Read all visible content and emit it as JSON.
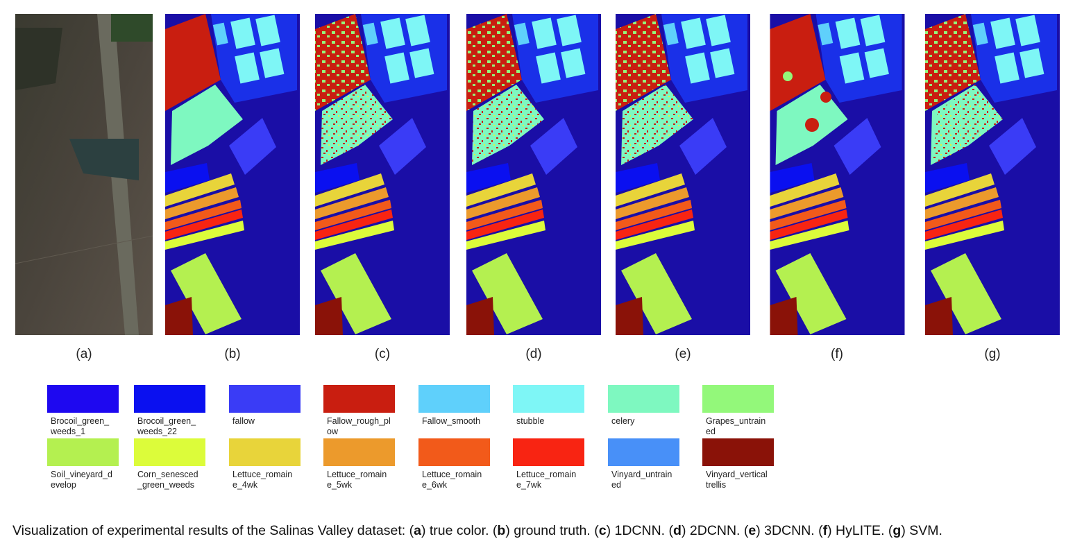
{
  "panels": [
    {
      "label": "(a)"
    },
    {
      "label": "(b)"
    },
    {
      "label": "(c)"
    },
    {
      "label": "(d)"
    },
    {
      "label": "(e)"
    },
    {
      "label": "(f)"
    },
    {
      "label": "(g)"
    }
  ],
  "legend": [
    {
      "label": "Brocoil_green_weeds_1",
      "color": "#1e08f0"
    },
    {
      "label": "Brocoil_green_weeds_22",
      "color": "#0a10f0"
    },
    {
      "label": "fallow",
      "color": "#3a3cf6"
    },
    {
      "label": "Fallow_rough_plow",
      "color": "#c91e10"
    },
    {
      "label": "Fallow_smooth",
      "color": "#5fd0fb"
    },
    {
      "label": "stubble",
      "color": "#7ef6f6"
    },
    {
      "label": "celery",
      "color": "#7ef8c0"
    },
    {
      "label": "Grapes_untrained",
      "color": "#93f87a"
    },
    {
      "label": "Soil_vineyard_develop",
      "color": "#b4f050"
    },
    {
      "label": "Corn_senesced_green_weeds",
      "color": "#dcfc3a"
    },
    {
      "label": "Lettuce_romaine_4wk",
      "color": "#e8d43a"
    },
    {
      "label": "Lettuce_romaine_5wk",
      "color": "#ec9a2c"
    },
    {
      "label": "Lettuce_romaine_6wk",
      "color": "#f25a1a"
    },
    {
      "label": "Lettuce_romaine_7wk",
      "color": "#f82412"
    },
    {
      "label": "Vinyard_untrained",
      "color": "#4890f8"
    },
    {
      "label": "Vinyard_vertical trellis",
      "color": "#8a1208"
    }
  ],
  "caption": [
    {
      "text": "Visualization of experimental results of the Salinas Valley dataset: ("
    },
    {
      "text": "a",
      "bold": true
    },
    {
      "text": ") true color. ("
    },
    {
      "text": "b",
      "bold": true
    },
    {
      "text": ") ground truth. ("
    },
    {
      "text": "c",
      "bold": true
    },
    {
      "text": ") 1DCNN. ("
    },
    {
      "text": "d",
      "bold": true
    },
    {
      "text": ") 2DCNN. ("
    },
    {
      "text": "e",
      "bold": true
    },
    {
      "text": ") 3DCNN. ("
    },
    {
      "text": "f",
      "bold": true
    },
    {
      "text": ") HyLITE. ("
    },
    {
      "text": "g",
      "bold": true
    },
    {
      "text": ") SVM."
    }
  ]
}
